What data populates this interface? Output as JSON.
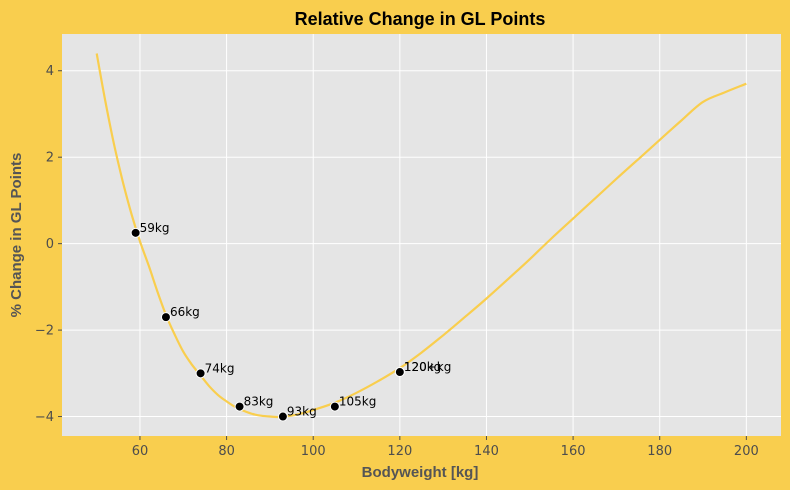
{
  "chart_data": {
    "type": "line",
    "title": "Relative Change in GL Points",
    "xlabel": "Bodyweight [kg]",
    "ylabel": "% Change in GL Points",
    "xlim": [
      42,
      208
    ],
    "ylim": [
      -4.45,
      4.85
    ],
    "xticks": [
      60,
      80,
      100,
      120,
      140,
      160,
      180,
      200
    ],
    "yticks": [
      -4,
      -2,
      0,
      2,
      4
    ],
    "grid": true,
    "line_color": "#f9ce4e",
    "point_color": "#000000",
    "background_color": "#e5e5e5",
    "figure_color": "#f9ce4e",
    "series": [
      {
        "x": [
          50,
          52,
          54,
          56,
          58,
          60,
          62,
          64,
          66,
          68,
          70,
          72,
          74,
          76,
          78,
          80,
          82,
          84,
          86,
          88,
          90,
          92,
          94,
          96,
          98,
          100,
          105,
          110,
          115,
          120,
          125,
          130,
          135,
          140,
          145,
          150,
          155,
          160,
          165,
          170,
          175,
          180,
          185,
          190,
          195,
          200
        ],
        "values": [
          4.4,
          3.3,
          2.3,
          1.45,
          0.7,
          0.05,
          -0.5,
          -1.1,
          -1.65,
          -2.1,
          -2.5,
          -2.8,
          -3.05,
          -3.3,
          -3.5,
          -3.65,
          -3.78,
          -3.87,
          -3.94,
          -3.98,
          -4.0,
          -4.01,
          -3.99,
          -3.96,
          -3.91,
          -3.85,
          -3.68,
          -3.45,
          -3.18,
          -2.88,
          -2.52,
          -2.12,
          -1.7,
          -1.27,
          -0.82,
          -0.36,
          0.12,
          0.58,
          1.04,
          1.5,
          1.95,
          2.4,
          2.85,
          3.28,
          3.5,
          3.7
        ]
      }
    ],
    "points": [
      {
        "x": 59,
        "y": 0.25,
        "label": "59kg"
      },
      {
        "x": 66,
        "y": -1.7,
        "label": "66kg"
      },
      {
        "x": 74,
        "y": -3.0,
        "label": "74kg"
      },
      {
        "x": 83,
        "y": -3.77,
        "label": "83kg"
      },
      {
        "x": 93,
        "y": -4.0,
        "label": "93kg"
      },
      {
        "x": 105,
        "y": -3.77,
        "label": "105kg"
      },
      {
        "x": 120,
        "y": -2.97,
        "label": "120kg"
      },
      {
        "x": 120,
        "y": -2.97,
        "label": "120+kg"
      }
    ]
  }
}
